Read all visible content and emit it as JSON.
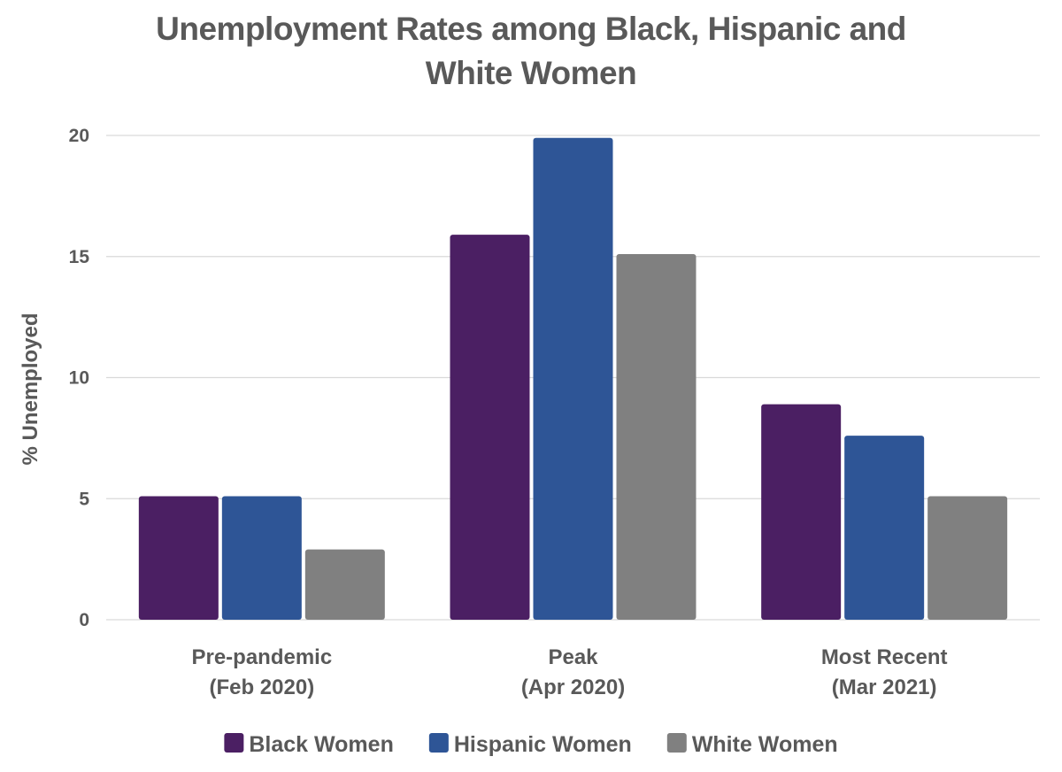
{
  "chart_data": {
    "type": "bar",
    "title_lines": [
      "Unemployment Rates among Black, Hispanic and",
      "White Women"
    ],
    "ylabel": "% Unemployed",
    "xlabel": "",
    "ylim": [
      0,
      20
    ],
    "yticks": [
      0,
      5,
      10,
      15,
      20
    ],
    "grid": true,
    "legend_position": "bottom",
    "categories": [
      [
        "Pre-pandemic",
        "(Feb 2020)"
      ],
      [
        "Peak",
        "(Apr 2020)"
      ],
      [
        "Most Recent",
        "(Mar 2021)"
      ]
    ],
    "series": [
      {
        "name": "Black Women",
        "color": "#4b1f63",
        "values": [
          5.1,
          15.9,
          8.9
        ]
      },
      {
        "name": "Hispanic Women",
        "color": "#2e5596",
        "values": [
          5.1,
          19.9,
          7.6
        ]
      },
      {
        "name": "White Women",
        "color": "#808080",
        "values": [
          2.9,
          15.1,
          5.1
        ]
      }
    ],
    "colors": {
      "text": "#595959",
      "gridline": "#d9d9d9"
    }
  }
}
